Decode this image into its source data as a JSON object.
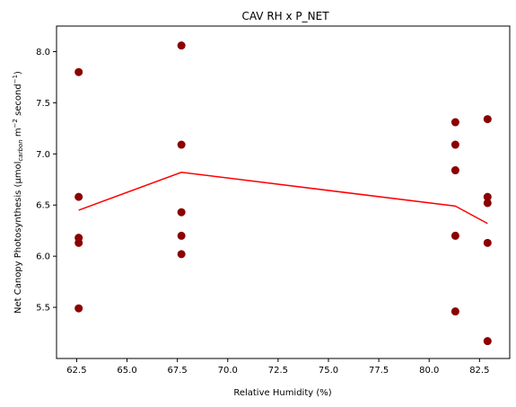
{
  "chart_data": {
    "type": "scatter",
    "title": "CAV RH x P_NET",
    "xlabel": "Relative Humidity (%)",
    "ylabel_main": "Net Canopy Photosynthesis (μmol",
    "ylabel_sub": "carbon",
    "ylabel_rest": " m",
    "ylabel_sup1": "−2",
    "ylabel_mid": " second",
    "ylabel_sup2": "−1",
    "ylabel_end": ")",
    "xlim": [
      61.5,
      84.0
    ],
    "ylim": [
      5.0,
      8.25
    ],
    "x_ticks": [
      62.5,
      65.0,
      67.5,
      70.0,
      72.5,
      75.0,
      77.5,
      80.0,
      82.5
    ],
    "x_tick_labels": [
      "62.5",
      "65.0",
      "67.5",
      "70.0",
      "72.5",
      "75.0",
      "77.5",
      "80.0",
      "82.5"
    ],
    "y_ticks": [
      5.5,
      6.0,
      6.5,
      7.0,
      7.5,
      8.0
    ],
    "y_tick_labels": [
      "5.5",
      "6.0",
      "6.5",
      "7.0",
      "7.5",
      "8.0"
    ],
    "series": [
      {
        "type": "scatter",
        "color": "#8b0000",
        "points": [
          [
            62.6,
            7.8
          ],
          [
            62.6,
            6.58
          ],
          [
            62.6,
            6.18
          ],
          [
            62.6,
            6.13
          ],
          [
            62.6,
            5.49
          ],
          [
            67.7,
            8.06
          ],
          [
            67.7,
            7.09
          ],
          [
            67.7,
            6.43
          ],
          [
            67.7,
            6.2
          ],
          [
            67.7,
            6.02
          ],
          [
            81.3,
            7.31
          ],
          [
            81.3,
            7.09
          ],
          [
            81.3,
            6.84
          ],
          [
            81.3,
            6.2
          ],
          [
            81.3,
            5.46
          ],
          [
            82.9,
            7.34
          ],
          [
            82.9,
            6.58
          ],
          [
            82.9,
            6.52
          ],
          [
            82.9,
            6.13
          ],
          [
            82.9,
            5.17
          ]
        ]
      },
      {
        "type": "line",
        "color": "#ff0000",
        "points": [
          [
            62.6,
            6.45
          ],
          [
            67.7,
            6.82
          ],
          [
            81.3,
            6.49
          ],
          [
            82.9,
            6.32
          ]
        ]
      }
    ]
  }
}
